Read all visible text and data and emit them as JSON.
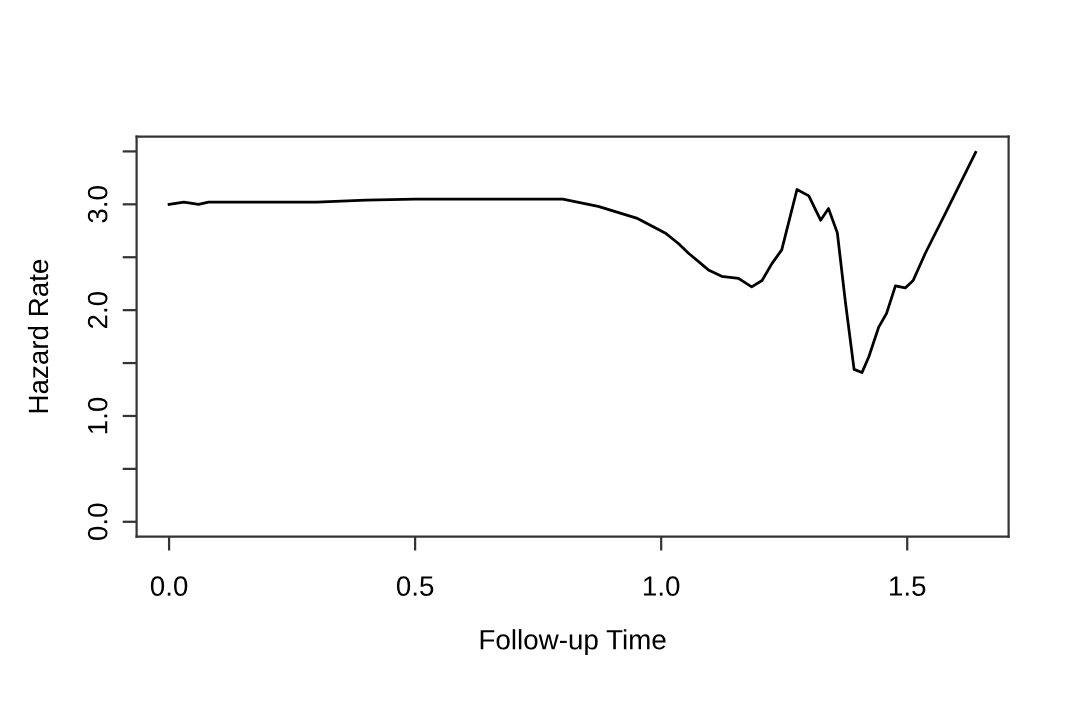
{
  "chart_data": {
    "type": "line",
    "xlabel": "Follow-up Time",
    "ylabel": "Hazard Rate",
    "x": [
      0.0,
      0.03,
      0.06,
      0.08,
      0.1,
      0.2,
      0.3,
      0.4,
      0.5,
      0.6,
      0.7,
      0.8,
      0.872,
      0.95,
      1.008,
      1.035,
      1.055,
      1.096,
      1.123,
      1.157,
      1.184,
      1.205,
      1.225,
      1.245,
      1.276,
      1.3,
      1.324,
      1.34,
      1.358,
      1.374,
      1.392,
      1.408,
      1.422,
      1.442,
      1.458,
      1.476,
      1.496,
      1.512,
      1.537,
      1.578,
      1.639
    ],
    "series": [
      {
        "color": "#000000",
        "values": [
          3.0,
          3.02,
          3.0,
          3.02,
          3.02,
          3.02,
          3.02,
          3.04,
          3.05,
          3.05,
          3.05,
          3.05,
          2.98,
          2.87,
          2.73,
          2.63,
          2.54,
          2.38,
          2.32,
          2.3,
          2.22,
          2.28,
          2.44,
          2.57,
          3.14,
          3.08,
          2.85,
          2.96,
          2.73,
          2.09,
          1.44,
          1.41,
          1.56,
          1.84,
          1.97,
          2.23,
          2.21,
          2.28,
          2.54,
          2.92,
          3.49
        ]
      }
    ],
    "xlim": [
      -0.066,
      1.706
    ],
    "ylim": [
      -0.14,
      3.64
    ],
    "xticks": [
      {
        "value": 0,
        "label": "0.0"
      },
      {
        "value": 0.5,
        "label": "0.5"
      },
      {
        "value": 1,
        "label": "1.0"
      },
      {
        "value": 1.5,
        "label": "1.5"
      }
    ],
    "yticks": [
      {
        "value": 0,
        "label": "0.0"
      },
      {
        "value": 0.5,
        "label": null
      },
      {
        "value": 1,
        "label": "1.0"
      },
      {
        "value": 1.5,
        "label": null
      },
      {
        "value": 2,
        "label": "2.0"
      },
      {
        "value": 2.5,
        "label": null
      },
      {
        "value": 3,
        "label": "3.0"
      },
      {
        "value": 3.5,
        "label": null
      }
    ],
    "grid": false,
    "legend": false,
    "line_style": "solid",
    "marker": "none"
  }
}
